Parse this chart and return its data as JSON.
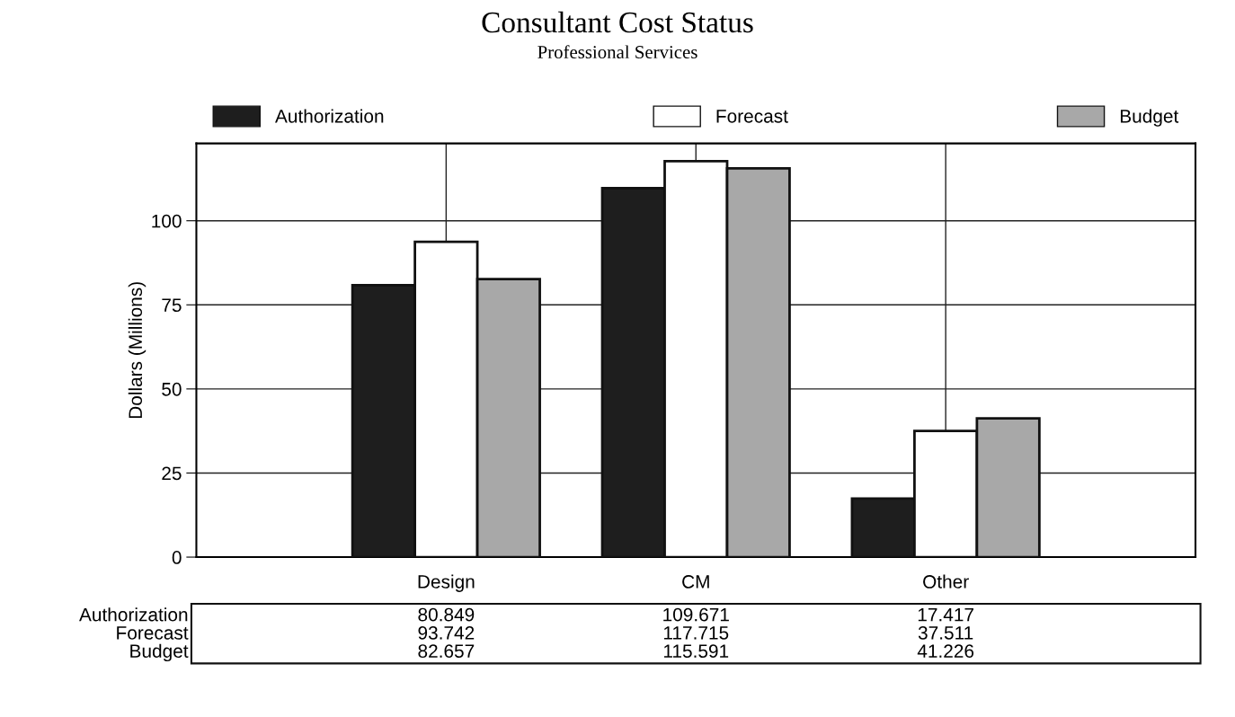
{
  "chart_data": {
    "type": "bar",
    "title": "Consultant Cost Status",
    "subtitle": "Professional Services",
    "ylabel": "Dollars (Millions)",
    "categories": [
      "Design",
      "CM",
      "Other"
    ],
    "series": [
      {
        "name": "Authorization",
        "color": "#1e1e1e",
        "values": [
          80.849,
          109.671,
          17.417
        ]
      },
      {
        "name": "Forecast",
        "color": "#ffffff",
        "values": [
          93.742,
          117.715,
          37.511
        ]
      },
      {
        "name": "Budget",
        "color": "#a8a8a8",
        "values": [
          82.657,
          115.591,
          41.226
        ]
      }
    ],
    "ylim": [
      0,
      123
    ],
    "yticks": [
      0,
      25,
      50,
      75,
      100
    ],
    "grid": true,
    "legend": "top",
    "data_labels": true
  }
}
